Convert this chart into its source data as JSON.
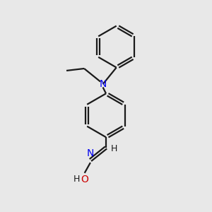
{
  "bg_color": "#e8e8e8",
  "bond_color": "#1a1a1a",
  "N_color": "#0000ee",
  "O_color": "#cc0000",
  "lw": 1.6,
  "figsize": [
    3.0,
    3.0
  ],
  "dpi": 100,
  "xlim": [
    0,
    10
  ],
  "ylim": [
    0,
    10
  ]
}
